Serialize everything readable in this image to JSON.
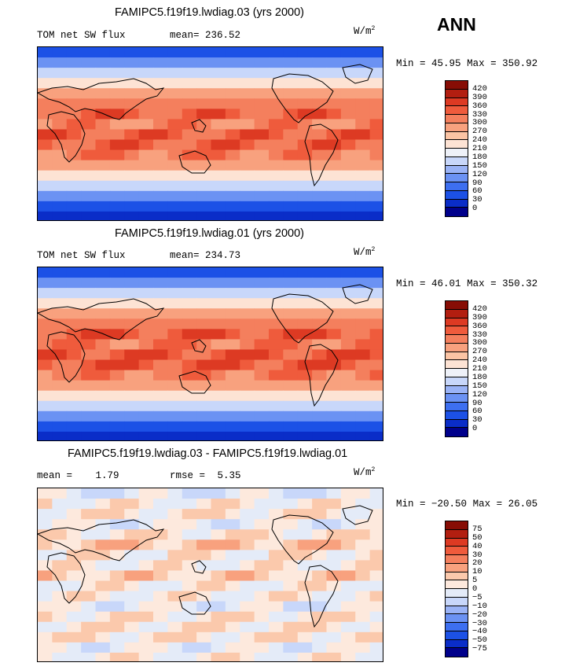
{
  "season": "ANN",
  "units_prefix": "W/m",
  "units_exp": "2",
  "colors": {
    "abs": [
      "#00008b",
      "#0a2dc8",
      "#1c51e6",
      "#3d6ff0",
      "#6b92f3",
      "#9ab3f6",
      "#c8d7fa",
      "#eef1f8",
      "#fde3d4",
      "#fbc4a4",
      "#f8a17e",
      "#f47f5d",
      "#ef5b3c",
      "#dd3a23",
      "#b21e10",
      "#870d05"
    ],
    "diff": [
      "#00008b",
      "#0a2dc8",
      "#1c51e6",
      "#3d6ff0",
      "#6b92f3",
      "#9ab3f6",
      "#c8d7fa",
      "#e4ebf8",
      "#fde9dd",
      "#fbc9ac",
      "#f8a17e",
      "#f47f5d",
      "#ef5b3c",
      "#dd3a23",
      "#b21e10",
      "#870d05"
    ]
  },
  "chart_data": [
    {
      "type": "heatmap",
      "title": "FAMIPC5.f19f19.lwdiag.03 (yrs 2000)",
      "variable": "TOM net SW flux",
      "stat_label": "mean=",
      "stat_value": "236.52",
      "min_label": "Min =",
      "min_value": "45.95",
      "max_label": "Max =",
      "max_value": "350.92",
      "levels": [
        "420",
        "390",
        "360",
        "330",
        "300",
        "270",
        "240",
        "210",
        "180",
        "150",
        "120",
        "90",
        "60",
        "30",
        "0"
      ],
      "lat_band_levels": [
        2,
        4,
        6,
        8,
        10,
        11,
        12,
        11,
        12,
        12,
        11,
        10,
        8,
        6,
        4,
        2,
        1
      ]
    },
    {
      "type": "heatmap",
      "title": "FAMIPC5.f19f19.lwdiag.01 (yrs 2000)",
      "variable": "TOM net SW flux",
      "stat_label": "mean=",
      "stat_value": "234.73",
      "min_label": "Min =",
      "min_value": "46.01",
      "max_label": "Max =",
      "max_value": "350.32",
      "levels": [
        "420",
        "390",
        "360",
        "330",
        "300",
        "270",
        "240",
        "210",
        "180",
        "150",
        "120",
        "90",
        "60",
        "30",
        "0"
      ],
      "lat_band_levels": [
        2,
        4,
        6,
        8,
        10,
        11,
        12,
        11,
        12,
        12,
        11,
        10,
        8,
        6,
        4,
        2,
        1
      ]
    },
    {
      "type": "heatmap",
      "title": "FAMIPC5.f19f19.lwdiag.03 - FAMIPC5.f19f19.lwdiag.01",
      "mean_label": "mean =",
      "mean_value": "1.79",
      "rmse_label": "rmse =",
      "rmse_value": "5.35",
      "min_label": "Min =",
      "min_value": "−20.50",
      "max_label": "Max =",
      "max_value": "26.05",
      "levels": [
        "75",
        "50",
        "40",
        "30",
        "20",
        "10",
        "5",
        "0",
        "−5",
        "−10",
        "−20",
        "−30",
        "−40",
        "−50",
        "−75"
      ],
      "lat_band_levels": [
        7,
        8,
        8,
        7,
        8,
        9,
        8,
        8,
        9,
        8,
        8,
        7,
        8,
        8,
        8,
        7,
        8
      ]
    }
  ]
}
